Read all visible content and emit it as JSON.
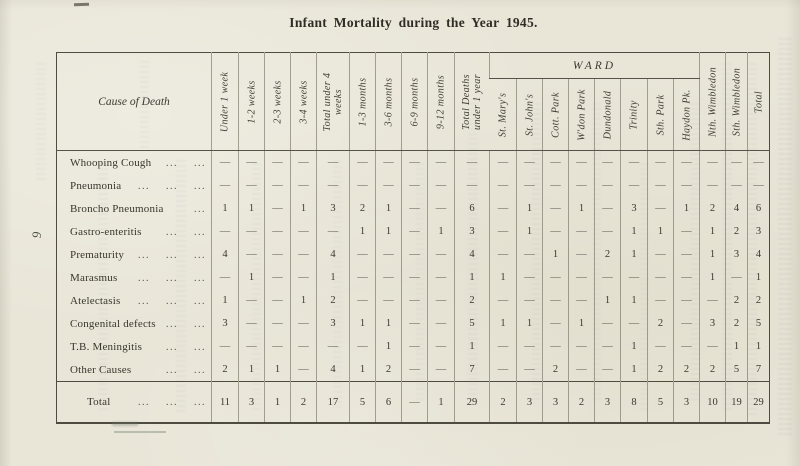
{
  "colors": {
    "paper": "#e9e6d8",
    "ink": "#3a382f",
    "rule": "#55524a"
  },
  "page_number": "9",
  "title": "Infant Mortality during the Year 1945.",
  "table": {
    "corner_header": "Cause of Death",
    "ward_group_label": "WARD",
    "age_columns": [
      "Under 1 week",
      "1-2 weeks",
      "2-3 weeks",
      "3-4 weeks",
      "Total under 4 weeks",
      "1-3 months",
      "3-6 months",
      "6-9 months",
      "9-12 months",
      "Total Deaths under 1 year"
    ],
    "ward_columns": [
      "St. Mary's",
      "St. John's",
      "Cott. Park",
      "W'don Park",
      "Dundonald",
      "Trinity",
      "Sth. Park",
      "Haydon Pk."
    ],
    "right_columns": [
      "Nth. Wimbledon",
      "Sth. Wimbledon",
      "Total"
    ],
    "rows": [
      {
        "label": "Whooping Cough",
        "leaders": "... ...",
        "values": [
          "—",
          "—",
          "—",
          "—",
          "—",
          "—",
          "—",
          "—",
          "—",
          "—",
          "—",
          "—",
          "—",
          "—",
          "—",
          "—",
          "—",
          "—",
          "—",
          "—",
          "—"
        ]
      },
      {
        "label": "Pneumonia",
        "leaders": "... ... ...",
        "values": [
          "—",
          "—",
          "—",
          "—",
          "—",
          "—",
          "—",
          "—",
          "—",
          "—",
          "—",
          "—",
          "—",
          "—",
          "—",
          "—",
          "—",
          "—",
          "—",
          "—",
          "—"
        ]
      },
      {
        "label": "Broncho Pneumonia",
        "leaders": "...",
        "values": [
          "1",
          "1",
          "—",
          "1",
          "3",
          "2",
          "1",
          "—",
          "—",
          "6",
          "—",
          "1",
          "—",
          "1",
          "—",
          "3",
          "—",
          "1",
          "2",
          "4",
          "6"
        ]
      },
      {
        "label": "Gastro-enteritis",
        "leaders": "... ...",
        "values": [
          "—",
          "—",
          "—",
          "—",
          "—",
          "1",
          "1",
          "—",
          "1",
          "3",
          "—",
          "1",
          "—",
          "—",
          "—",
          "1",
          "1",
          "—",
          "1",
          "2",
          "3"
        ]
      },
      {
        "label": "Prematurity",
        "leaders": "... ... ...",
        "values": [
          "4",
          "—",
          "—",
          "—",
          "4",
          "—",
          "—",
          "—",
          "—",
          "4",
          "—",
          "—",
          "1",
          "—",
          "2",
          "1",
          "—",
          "—",
          "1",
          "3",
          "4"
        ]
      },
      {
        "label": "Marasmus",
        "leaders": "... ... ...",
        "values": [
          "—",
          "1",
          "—",
          "—",
          "1",
          "—",
          "—",
          "—",
          "—",
          "1",
          "1",
          "—",
          "—",
          "—",
          "—",
          "—",
          "—",
          "—",
          "1",
          "—",
          "1"
        ]
      },
      {
        "label": "Atelectasis",
        "leaders": "... ... ...",
        "values": [
          "1",
          "—",
          "—",
          "1",
          "2",
          "—",
          "—",
          "—",
          "—",
          "2",
          "—",
          "—",
          "—",
          "—",
          "1",
          "1",
          "—",
          "—",
          "—",
          "2",
          "2"
        ]
      },
      {
        "label": "Congenital defects",
        "leaders": "... ...",
        "values": [
          "3",
          "—",
          "—",
          "—",
          "3",
          "1",
          "1",
          "—",
          "—",
          "5",
          "1",
          "1",
          "—",
          "1",
          "—",
          "—",
          "2",
          "—",
          "3",
          "2",
          "5"
        ]
      },
      {
        "label": "T.B. Meningitis",
        "leaders": "... ...",
        "values": [
          "—",
          "—",
          "—",
          "—",
          "—",
          "—",
          "1",
          "—",
          "—",
          "1",
          "—",
          "—",
          "—",
          "—",
          "—",
          "1",
          "—",
          "—",
          "—",
          "1",
          "1"
        ]
      },
      {
        "label": "Other Causes",
        "leaders": "... ...",
        "values": [
          "2",
          "1",
          "1",
          "—",
          "4",
          "1",
          "2",
          "—",
          "—",
          "7",
          "—",
          "—",
          "2",
          "—",
          "—",
          "1",
          "2",
          "2",
          "2",
          "5",
          "7"
        ]
      }
    ],
    "total_row": {
      "label": "Total",
      "leaders": "... ... ...",
      "values": [
        "11",
        "3",
        "1",
        "2",
        "17",
        "5",
        "6",
        "—",
        "1",
        "29",
        "2",
        "3",
        "3",
        "2",
        "3",
        "8",
        "5",
        "3",
        "10",
        "19",
        "29"
      ]
    }
  }
}
